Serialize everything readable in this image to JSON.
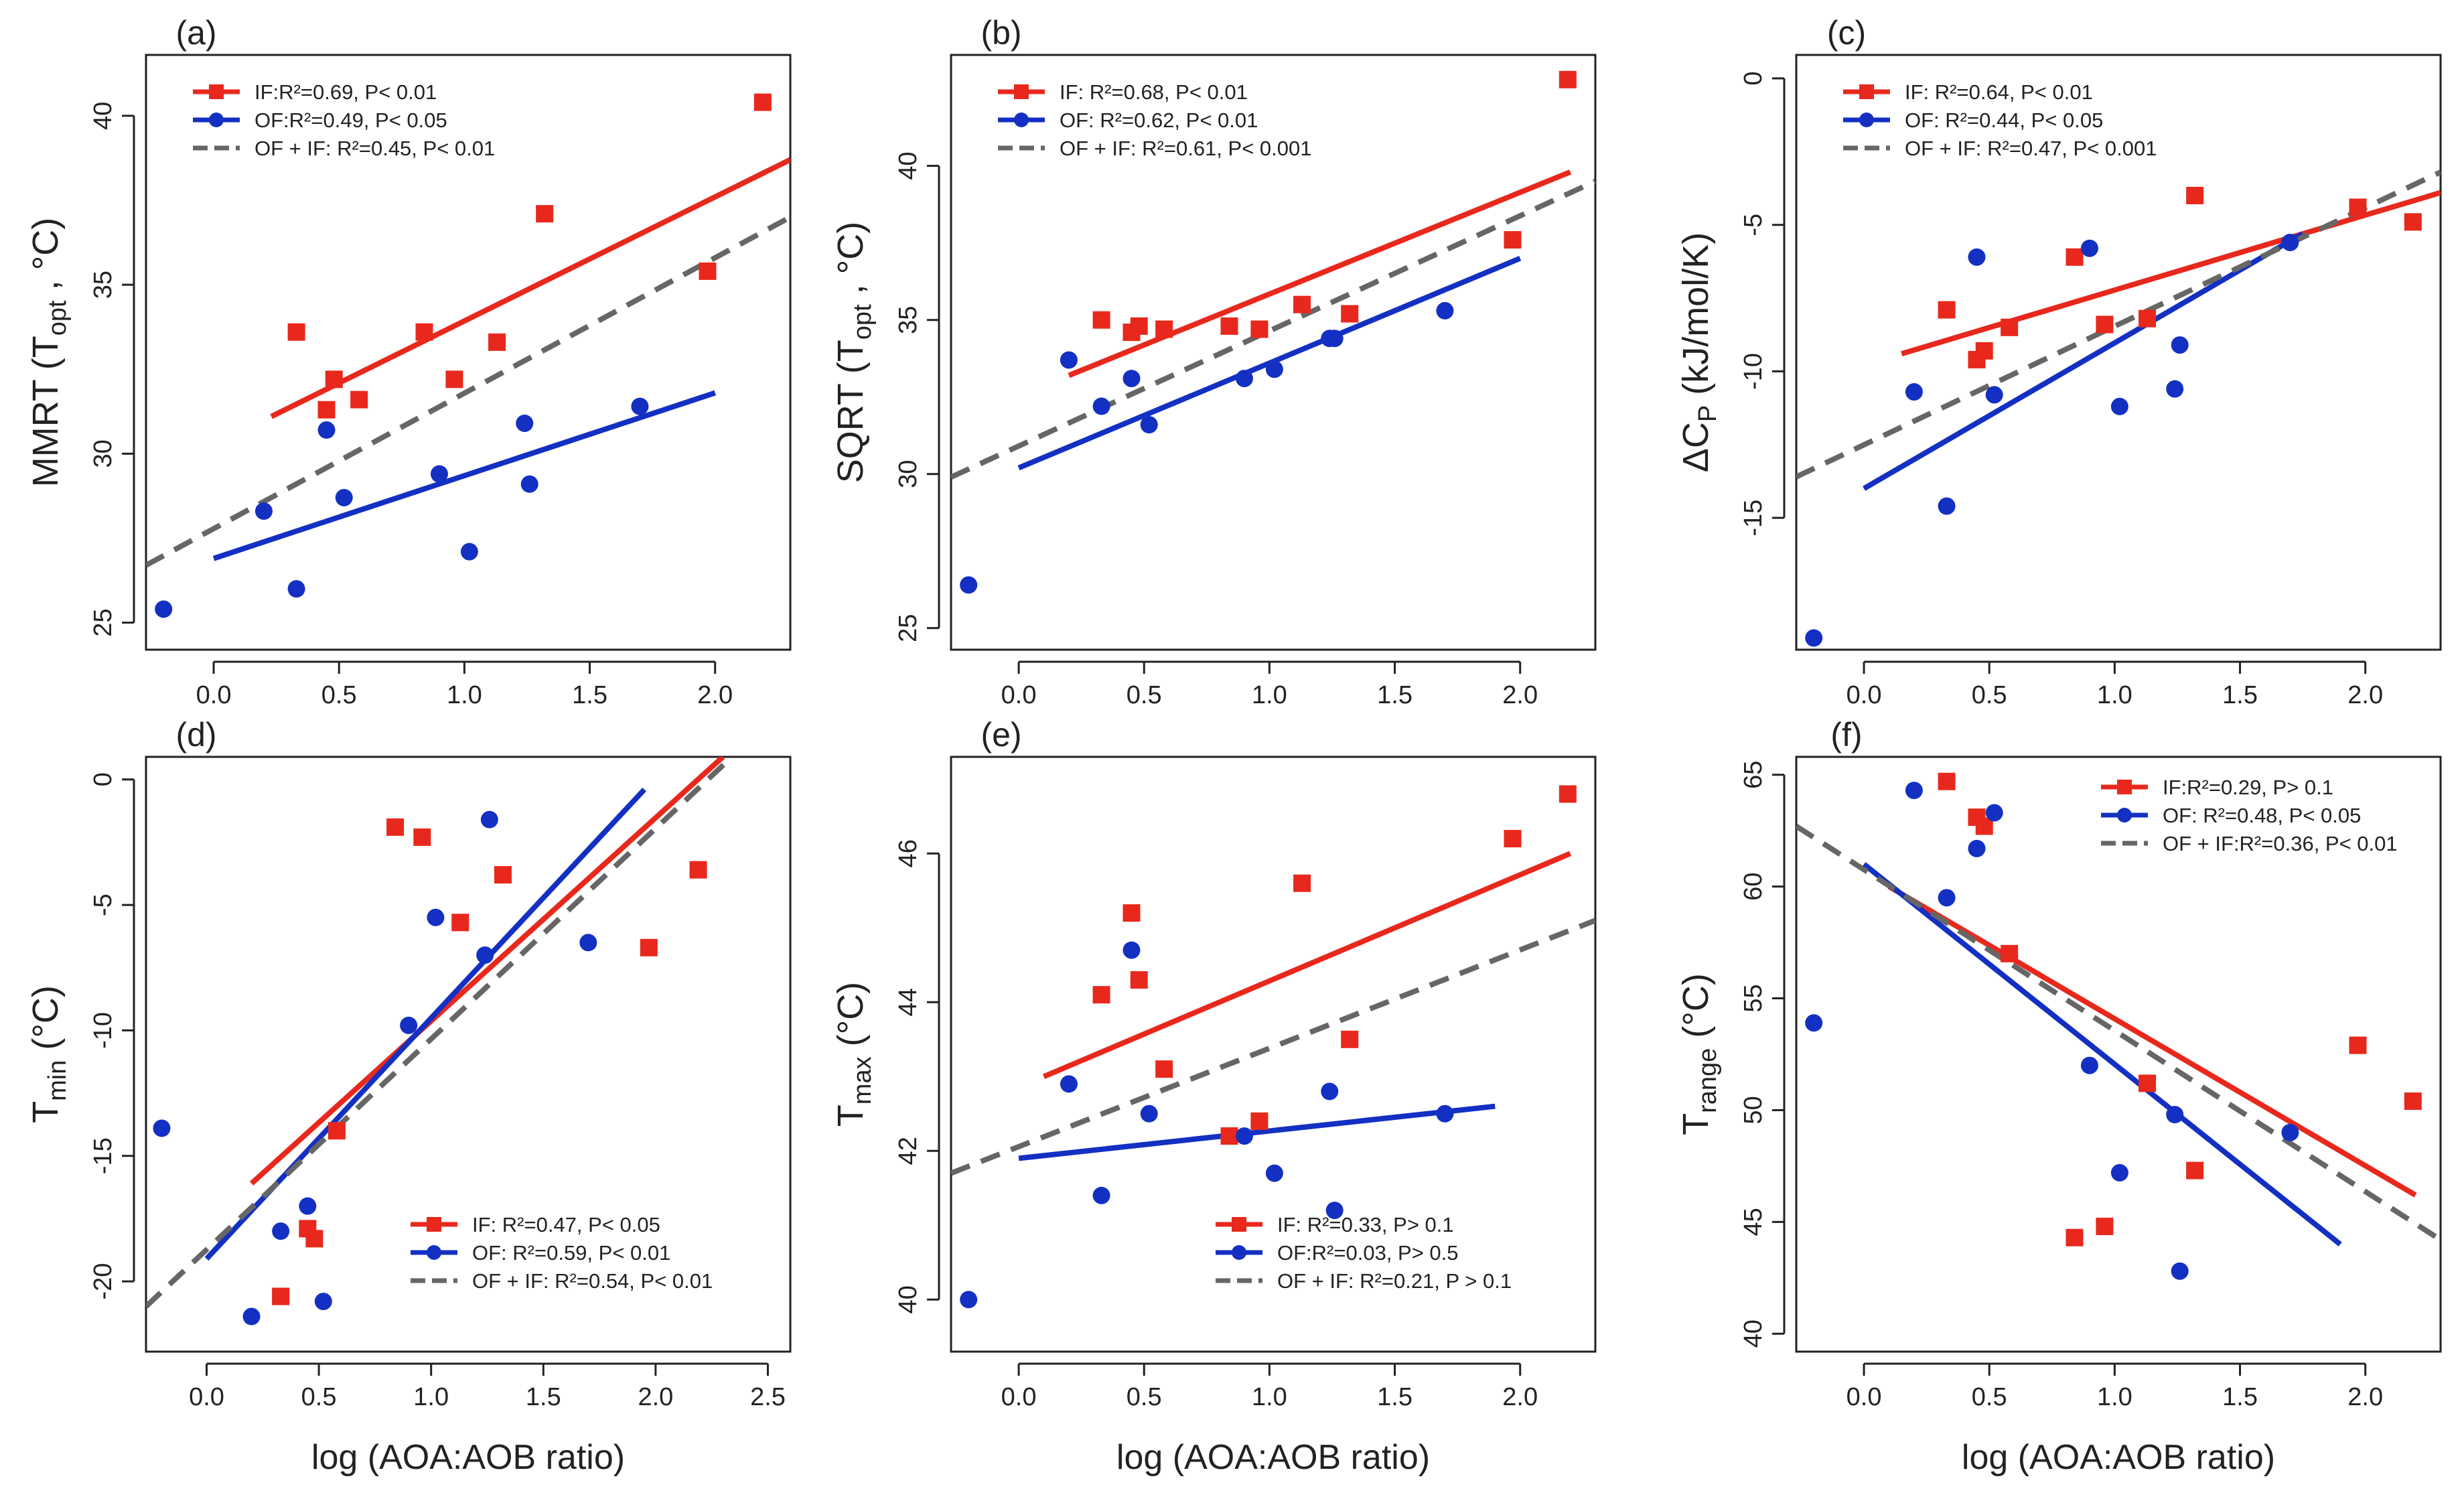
{
  "colors": {
    "IF": "#e8281c",
    "OF": "#1330c3",
    "ALL": "#666666"
  },
  "chart_data": [
    {
      "type": "scatter",
      "panel": "(a)",
      "ylabel_main": "MMRT (T",
      "ylabel_sub": "opt",
      "ylabel_tail": " , °C)",
      "xlabel": "",
      "xlim": [
        -0.27,
        2.3
      ],
      "ylim": [
        24.2,
        41.8
      ],
      "xticks": [
        "0.0",
        "0.5",
        "1.0",
        "1.5",
        "2.0"
      ],
      "xtick_values": [
        0,
        0.5,
        1,
        1.5,
        2
      ],
      "yticks": [
        "25",
        "30",
        "35",
        "40"
      ],
      "ytick_values": [
        25,
        30,
        35,
        40
      ],
      "legend_position": "top-left",
      "legend": [
        {
          "series": "IF",
          "label": "IF:R²=0.69, P< 0.01"
        },
        {
          "series": "OF",
          "label": "OF:R²=0.49, P< 0.05"
        },
        {
          "series": "ALL",
          "label": "OF + IF: R²=0.45, P< 0.01"
        }
      ],
      "series": [
        {
          "name": "IF",
          "marker": "square",
          "x": [
            0.33,
            0.45,
            0.48,
            0.58,
            0.84,
            0.96,
            1.13,
            1.32,
            1.97,
            2.19
          ],
          "y": [
            33.6,
            31.3,
            32.2,
            31.6,
            33.6,
            32.2,
            33.3,
            37.1,
            35.4,
            40.4
          ]
        },
        {
          "name": "OF",
          "marker": "circle",
          "x": [
            -0.2,
            0.2,
            0.33,
            0.45,
            0.52,
            0.9,
            1.02,
            1.24,
            1.26,
            1.7
          ],
          "y": [
            25.4,
            28.3,
            26.0,
            30.7,
            28.7,
            29.4,
            27.1,
            30.9,
            29.1,
            31.4
          ]
        }
      ],
      "fits": [
        {
          "series": "IF",
          "style": "solid",
          "x": [
            0.23,
            2.3
          ],
          "y": [
            31.1,
            38.7
          ]
        },
        {
          "series": "OF",
          "style": "solid",
          "x": [
            0.0,
            2.0
          ],
          "y": [
            26.9,
            31.8
          ]
        },
        {
          "series": "ALL",
          "style": "dashed",
          "x": [
            -0.27,
            2.3
          ],
          "y": [
            26.7,
            37.0
          ]
        }
      ]
    },
    {
      "type": "scatter",
      "panel": "(b)",
      "ylabel_main": "SQRT (T",
      "ylabel_sub": "opt",
      "ylabel_tail": " , °C)",
      "xlabel": "",
      "xlim": [
        -0.27,
        2.3
      ],
      "ylim": [
        24.3,
        43.6
      ],
      "xticks": [
        "0.0",
        "0.5",
        "1.0",
        "1.5",
        "2.0"
      ],
      "xtick_values": [
        0,
        0.5,
        1,
        1.5,
        2
      ],
      "yticks": [
        "25",
        "30",
        "35",
        "40"
      ],
      "ytick_values": [
        25,
        30,
        35,
        40
      ],
      "legend_position": "top-left",
      "legend": [
        {
          "series": "IF",
          "label": "IF: R²=0.68, P< 0.01"
        },
        {
          "series": "OF",
          "label": "OF: R²=0.62, P< 0.01"
        },
        {
          "series": "ALL",
          "label": "OF + IF:  R²=0.61, P< 0.001"
        }
      ],
      "series": [
        {
          "name": "IF",
          "marker": "square",
          "x": [
            0.33,
            0.45,
            0.48,
            0.58,
            0.84,
            0.96,
            1.13,
            1.32,
            1.97,
            2.19
          ],
          "y": [
            35.0,
            34.6,
            34.8,
            34.7,
            34.8,
            34.7,
            35.5,
            35.2,
            37.6,
            42.8
          ]
        },
        {
          "name": "OF",
          "marker": "circle",
          "x": [
            -0.2,
            0.2,
            0.33,
            0.45,
            0.52,
            0.9,
            1.02,
            1.24,
            1.26,
            1.7
          ],
          "y": [
            26.4,
            33.7,
            32.2,
            33.1,
            31.6,
            33.1,
            33.4,
            34.4,
            34.4,
            35.3
          ]
        }
      ],
      "fits": [
        {
          "series": "IF",
          "style": "solid",
          "x": [
            0.2,
            2.2
          ],
          "y": [
            33.2,
            39.8
          ]
        },
        {
          "series": "OF",
          "style": "solid",
          "x": [
            0.0,
            2.0
          ],
          "y": [
            30.2,
            37.0
          ]
        },
        {
          "series": "ALL",
          "style": "dashed",
          "x": [
            -0.27,
            2.3
          ],
          "y": [
            29.9,
            39.5
          ]
        }
      ]
    },
    {
      "type": "scatter",
      "panel": "(c)",
      "ylabel_main": "ΔC",
      "ylabel_sub": "P",
      "ylabel_tail": " (kJ/mol/K)",
      "xlabel": "",
      "xlim": [
        -0.27,
        2.3
      ],
      "ylim": [
        -19.5,
        0.8
      ],
      "xticks": [
        "0.0",
        "0.5",
        "1.0",
        "1.5",
        "2.0"
      ],
      "xtick_values": [
        0,
        0.5,
        1,
        1.5,
        2
      ],
      "yticks": [
        "-15",
        "-10",
        "-5",
        "0"
      ],
      "ytick_values": [
        -15,
        -10,
        -5,
        0
      ],
      "legend_position": "top-left",
      "legend": [
        {
          "series": "IF",
          "label": "IF: R²=0.64, P< 0.01"
        },
        {
          "series": "OF",
          "label": "OF: R²=0.44, P< 0.05"
        },
        {
          "series": "ALL",
          "label": "OF + IF:  R²=0.47, P< 0.001"
        }
      ],
      "series": [
        {
          "name": "IF",
          "marker": "square",
          "x": [
            0.33,
            0.45,
            0.48,
            0.58,
            0.84,
            0.96,
            1.13,
            1.32,
            1.97,
            2.19
          ],
          "y": [
            -7.9,
            -9.6,
            -9.3,
            -8.5,
            -6.1,
            -8.4,
            -8.2,
            -4.0,
            -4.4,
            -4.9
          ]
        },
        {
          "name": "OF",
          "marker": "circle",
          "x": [
            -0.2,
            0.2,
            0.33,
            0.45,
            0.52,
            0.9,
            1.02,
            1.24,
            1.26,
            1.7
          ],
          "y": [
            -19.1,
            -10.7,
            -14.6,
            -6.1,
            -10.8,
            -5.8,
            -11.2,
            -10.6,
            -9.1,
            -5.6
          ]
        }
      ],
      "fits": [
        {
          "series": "IF",
          "style": "solid",
          "x": [
            0.15,
            2.3
          ],
          "y": [
            -9.4,
            -3.9
          ]
        },
        {
          "series": "OF",
          "style": "solid",
          "x": [
            0.0,
            1.75
          ],
          "y": [
            -14.0,
            -5.3
          ]
        },
        {
          "series": "ALL",
          "style": "dashed",
          "x": [
            -0.27,
            2.3
          ],
          "y": [
            -13.6,
            -3.2
          ]
        }
      ]
    },
    {
      "type": "scatter",
      "panel": "(d)",
      "ylabel_main": "T",
      "ylabel_sub": "min",
      "ylabel_tail": " (°C)",
      "xlabel": "log (AOA:AOB ratio)",
      "xlim": [
        -0.27,
        2.6
      ],
      "ylim": [
        -22.8,
        0.9
      ],
      "xticks": [
        "0.0",
        "0.5",
        "1.0",
        "1.5",
        "2.0",
        "2.5"
      ],
      "xtick_values": [
        0,
        0.5,
        1,
        1.5,
        2,
        2.5
      ],
      "yticks": [
        "-20",
        "-15",
        "-10",
        "-5",
        "0"
      ],
      "ytick_values": [
        -20,
        -15,
        -10,
        -5,
        0
      ],
      "legend_position": "bottom-right",
      "legend": [
        {
          "series": "IF",
          "label": "IF: R²=0.47, P< 0.05"
        },
        {
          "series": "OF",
          "label": "OF: R²=0.59, P< 0.01"
        },
        {
          "series": "ALL",
          "label": "OF + IF:  R²=0.54, P< 0.01"
        }
      ],
      "series": [
        {
          "name": "IF",
          "marker": "square",
          "x": [
            0.33,
            0.45,
            0.48,
            0.58,
            0.84,
            0.96,
            1.13,
            1.32,
            1.97,
            2.19
          ],
          "y": [
            -20.6,
            -17.9,
            -18.3,
            -14.0,
            -1.9,
            -2.3,
            -5.7,
            -3.8,
            -6.7,
            -3.6
          ]
        },
        {
          "name": "OF",
          "marker": "circle",
          "x": [
            -0.2,
            0.2,
            0.33,
            0.45,
            0.52,
            0.9,
            1.02,
            1.24,
            1.26,
            1.7
          ],
          "y": [
            -13.9,
            -21.4,
            -18.0,
            -17.0,
            -20.8,
            -9.8,
            -5.5,
            -7.0,
            -1.6,
            -6.5
          ]
        }
      ],
      "fits": [
        {
          "series": "IF",
          "style": "solid",
          "x": [
            0.2,
            2.3
          ],
          "y": [
            -16.1,
            0.9
          ]
        },
        {
          "series": "OF",
          "style": "solid",
          "x": [
            0.0,
            1.95
          ],
          "y": [
            -19.1,
            -0.4
          ]
        },
        {
          "series": "ALL",
          "style": "dashed",
          "x": [
            -0.27,
            2.34
          ],
          "y": [
            -21.0,
            0.9
          ]
        }
      ]
    },
    {
      "type": "scatter",
      "panel": "(e)",
      "ylabel_main": "T",
      "ylabel_sub": "max",
      "ylabel_tail": " (°C)",
      "xlabel": "log (AOA:AOB ratio)",
      "xlim": [
        -0.27,
        2.3
      ],
      "ylim": [
        39.3,
        47.3
      ],
      "xticks": [
        "0.0",
        "0.5",
        "1.0",
        "1.5",
        "2.0"
      ],
      "xtick_values": [
        0,
        0.5,
        1,
        1.5,
        2
      ],
      "yticks": [
        "40",
        "42",
        "44",
        "46"
      ],
      "ytick_values": [
        40,
        42,
        44,
        46
      ],
      "legend_position": "bottom-right",
      "legend": [
        {
          "series": "IF",
          "label": "IF: R²=0.33, P> 0.1"
        },
        {
          "series": "OF",
          "label": "OF:R²=0.03, P> 0.5"
        },
        {
          "series": "ALL",
          "label": "OF + IF:  R²=0.21, P > 0.1"
        }
      ],
      "series": [
        {
          "name": "IF",
          "marker": "square",
          "x": [
            0.33,
            0.45,
            0.48,
            0.58,
            0.84,
            0.96,
            1.13,
            1.32,
            1.97,
            2.19
          ],
          "y": [
            44.1,
            45.2,
            44.3,
            43.1,
            42.2,
            42.4,
            45.6,
            43.5,
            46.2,
            46.8
          ]
        },
        {
          "name": "OF",
          "marker": "circle",
          "x": [
            -0.2,
            0.2,
            0.33,
            0.45,
            0.52,
            0.9,
            1.02,
            1.24,
            1.26,
            1.7
          ],
          "y": [
            40.0,
            42.9,
            41.4,
            44.7,
            42.5,
            42.2,
            41.7,
            42.8,
            41.2,
            42.5
          ]
        }
      ],
      "fits": [
        {
          "series": "IF",
          "style": "solid",
          "x": [
            0.1,
            2.2
          ],
          "y": [
            43.0,
            46.0
          ]
        },
        {
          "series": "OF",
          "style": "solid",
          "x": [
            0.0,
            1.9
          ],
          "y": [
            41.9,
            42.6
          ]
        },
        {
          "series": "ALL",
          "style": "dashed",
          "x": [
            -0.27,
            2.3
          ],
          "y": [
            41.7,
            45.1
          ]
        }
      ]
    },
    {
      "type": "scatter",
      "panel": "(f)",
      "ylabel_main": "T",
      "ylabel_sub": "range",
      "ylabel_tail": " (°C)",
      "xlabel": "log (AOA:AOB ratio)",
      "xlim": [
        -0.27,
        2.3
      ],
      "ylim": [
        39.2,
        65.8
      ],
      "xticks": [
        "0.0",
        "0.5",
        "1.0",
        "1.5",
        "2.0"
      ],
      "xtick_values": [
        0,
        0.5,
        1,
        1.5,
        2
      ],
      "yticks": [
        "40",
        "45",
        "50",
        "55",
        "60",
        "65"
      ],
      "ytick_values": [
        40,
        45,
        50,
        55,
        60,
        65
      ],
      "legend_position": "top-right",
      "legend": [
        {
          "series": "IF",
          "label": "IF:R²=0.29, P> 0.1"
        },
        {
          "series": "OF",
          "label": "OF: R²=0.48, P< 0.05"
        },
        {
          "series": "ALL",
          "label": "OF + IF:R²=0.36, P< 0.01"
        }
      ],
      "series": [
        {
          "name": "IF",
          "marker": "square",
          "x": [
            0.33,
            0.45,
            0.48,
            0.58,
            0.84,
            0.96,
            1.13,
            1.32,
            1.97,
            2.19
          ],
          "y": [
            64.7,
            63.1,
            62.7,
            57.0,
            44.3,
            44.8,
            51.2,
            47.3,
            52.9,
            50.4
          ]
        },
        {
          "name": "OF",
          "marker": "circle",
          "x": [
            -0.2,
            0.2,
            0.33,
            0.45,
            0.52,
            0.9,
            1.02,
            1.24,
            1.26,
            1.7
          ],
          "y": [
            53.9,
            64.3,
            59.5,
            61.7,
            63.3,
            52.0,
            47.2,
            49.8,
            42.8,
            49.0
          ]
        }
      ],
      "fits": [
        {
          "series": "IF",
          "style": "solid",
          "x": [
            0.1,
            2.2
          ],
          "y": [
            60.0,
            46.2
          ]
        },
        {
          "series": "OF",
          "style": "solid",
          "x": [
            0.0,
            1.9
          ],
          "y": [
            61.0,
            44.0
          ]
        },
        {
          "series": "ALL",
          "style": "dashed",
          "x": [
            -0.27,
            2.3
          ],
          "y": [
            62.7,
            44.2
          ]
        }
      ]
    }
  ]
}
